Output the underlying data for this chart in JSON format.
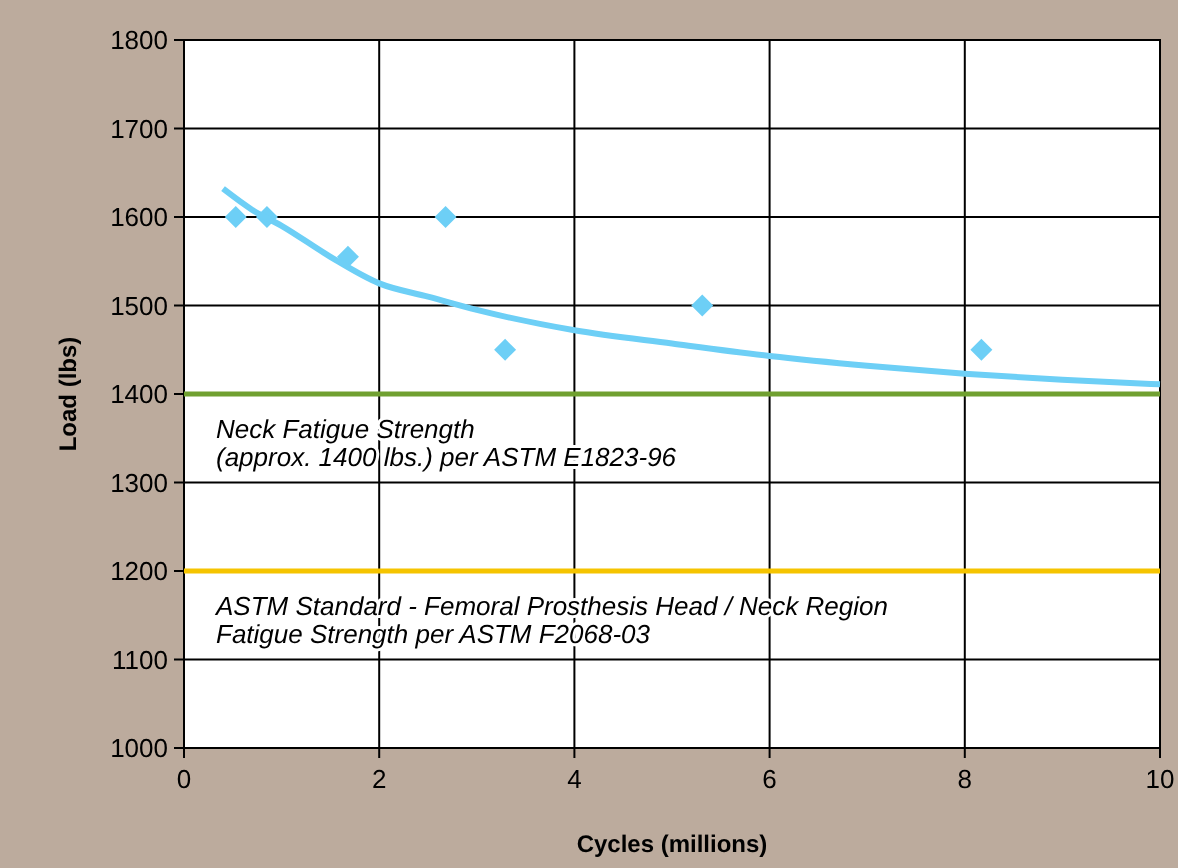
{
  "chart_data": {
    "type": "scatter",
    "xlabel": "Cycles (millions)",
    "ylabel": "Load (lbs)",
    "xlim": [
      0,
      10
    ],
    "xticks": [
      0,
      2,
      4,
      6,
      8,
      10
    ],
    "ylim": [
      1000,
      1800
    ],
    "yticks": [
      1000,
      1100,
      1200,
      1300,
      1400,
      1500,
      1600,
      1700,
      1800
    ],
    "grid": true,
    "marker": "diamond",
    "series": [
      {
        "color": "#6dcff6",
        "x": [
          0.53,
          0.85,
          1.68,
          2.68,
          3.29,
          5.31,
          8.17
        ],
        "values": [
          1600,
          1600,
          1555,
          1600,
          1450,
          1500,
          1450
        ]
      },
      {
        "type": "line",
        "marker": "none",
        "color": "#6dcff6",
        "x": [
          0.4,
          0.7,
          1,
          1.5,
          2,
          2.5,
          3,
          4,
          5,
          6,
          7,
          8,
          9,
          10
        ],
        "values": [
          1632,
          1608,
          1590,
          1555,
          1525,
          1510,
          1495,
          1472,
          1457,
          1443,
          1432,
          1423,
          1416,
          1411
        ]
      }
    ],
    "ref_lines": [
      {
        "axis": "y",
        "value": 1400,
        "label": "Neck Fatigue Strength\n(approx. 1400 lbs.) per ASTM E1823-96",
        "color": "#70a030"
      },
      {
        "axis": "y",
        "value": 1200,
        "label": "ASTM Standard - Femoral Prosthesis Head / Neck Region\nFatigue Strength per ASTM F2068-03",
        "color": "#f5c400"
      }
    ]
  }
}
